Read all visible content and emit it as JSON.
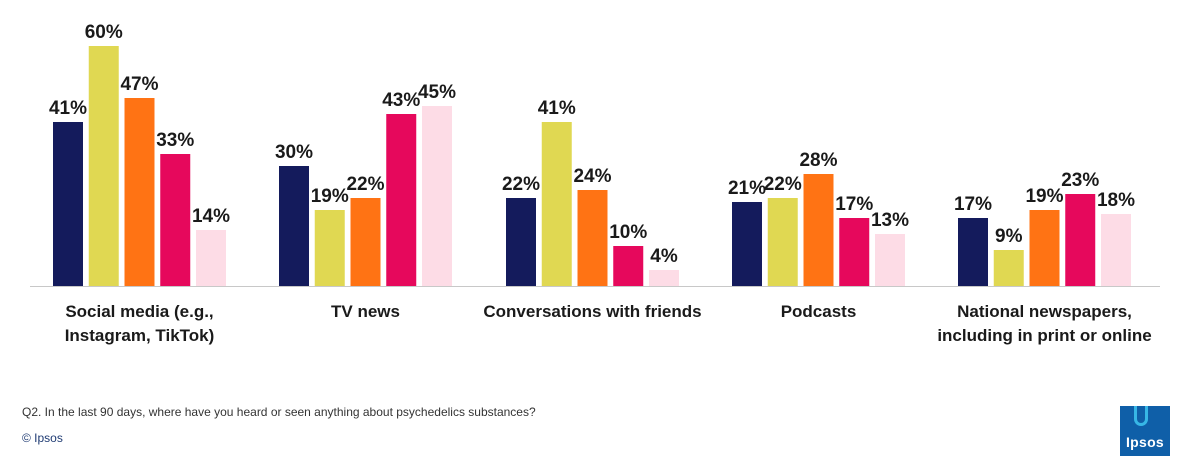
{
  "chart_data": {
    "type": "bar",
    "categories": [
      "Social media (e.g., Instagram, TikTok)",
      "TV news",
      "Conversations with friends",
      "Podcasts",
      "National newspapers, including in print or online"
    ],
    "category_lines": [
      [
        "Social media (e.g.,",
        "Instagram, TikTok)"
      ],
      [
        "TV news"
      ],
      [
        "Conversations with friends"
      ],
      [
        "Podcasts"
      ],
      [
        "National newspapers,",
        "including in print or online"
      ]
    ],
    "series": [
      {
        "color": "#141b5c",
        "values": [
          41,
          30,
          22,
          21,
          17
        ]
      },
      {
        "color": "#e0d852",
        "values": [
          60,
          19,
          41,
          22,
          9
        ]
      },
      {
        "color": "#ff7314",
        "values": [
          47,
          22,
          24,
          28,
          19
        ]
      },
      {
        "color": "#e6085c",
        "values": [
          33,
          43,
          10,
          17,
          23
        ]
      },
      {
        "color": "#fddce6",
        "values": [
          14,
          45,
          4,
          13,
          18
        ]
      }
    ],
    "value_suffix": "%",
    "ylim": [
      0,
      60
    ],
    "legend": "none",
    "grid": false
  },
  "footer": {
    "question": "Q2. In the last 90 days, where have you heard or seen anything about psychedelics substances?",
    "copyright": "© Ipsos",
    "logo_text": "Ipsos"
  }
}
